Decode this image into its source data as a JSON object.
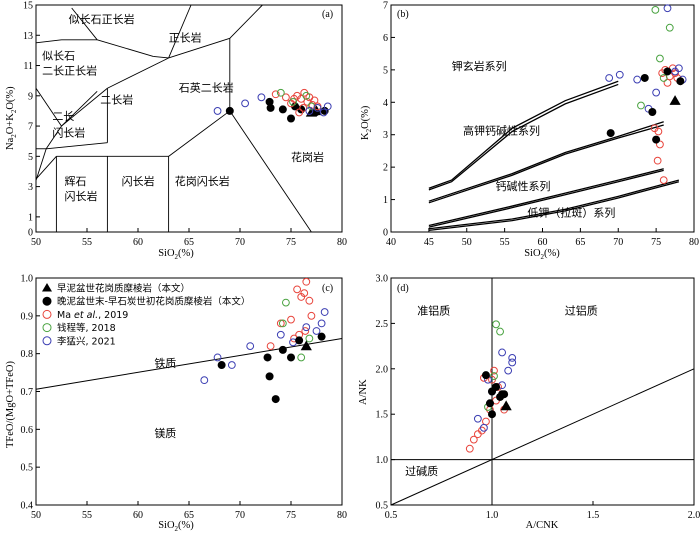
{
  "chart_data": [
    {
      "panel": "(a)",
      "type": "scatter",
      "xlabel": "SiO2(%)",
      "ylabel": "Na2O+K2O(%)",
      "xlim": [
        50,
        80
      ],
      "ylim": [
        0,
        15
      ],
      "xticks": [
        "50",
        "55",
        "60",
        "65",
        "70",
        "75",
        "80"
      ],
      "yticks": [
        "0",
        "1",
        "3",
        "5",
        "7",
        "9",
        "11",
        "13",
        "15"
      ],
      "fields": [
        "似长石正长岩",
        "似长石",
        "二长正长岩",
        "正长岩",
        "石英二长岩",
        "二长岩",
        "二长",
        "闪长岩",
        "辉石",
        "闪长岩",
        "闪长岩",
        "花岗闪长岩",
        "花岗岩"
      ],
      "series": [
        {
          "name": "早泥盆世花岗质糜棱岩（本文）",
          "marker": "triangle",
          "points": [
            [
              77.0,
              7.9
            ],
            [
              77.5,
              8.0
            ]
          ]
        },
        {
          "name": "晚泥盆世末-早石炭世初花岗质糜棱岩（本文）",
          "marker": "filled-circle",
          "points": [
            [
              69.0,
              8.0
            ],
            [
              72.9,
              8.6
            ],
            [
              73.0,
              8.2
            ],
            [
              74.2,
              8.1
            ],
            [
              75.0,
              7.5
            ],
            [
              75.4,
              8.3
            ],
            [
              76.0,
              8.1
            ],
            [
              77.4,
              7.9
            ],
            [
              78.3,
              8.0
            ]
          ]
        },
        {
          "name": "Ma et al., 2019",
          "marker": "red-circle",
          "points": [
            [
              73.5,
              9.1
            ],
            [
              74.5,
              8.9
            ],
            [
              75.0,
              8.5
            ],
            [
              75.3,
              8.8
            ],
            [
              75.6,
              9.0
            ],
            [
              76.0,
              8.8
            ],
            [
              76.3,
              9.2
            ],
            [
              76.6,
              8.6
            ],
            [
              76.8,
              8.9
            ],
            [
              77.1,
              8.4
            ],
            [
              77.3,
              8.7
            ],
            [
              77.6,
              8.3
            ],
            [
              76.2,
              8.2
            ],
            [
              75.8,
              7.9
            ]
          ]
        },
        {
          "name": "钱程等, 2018",
          "marker": "green-circle",
          "points": [
            [
              74.0,
              9.2
            ],
            [
              75.2,
              8.6
            ],
            [
              76.5,
              9.0
            ],
            [
              77.0,
              8.3
            ]
          ]
        },
        {
          "name": "李猛兴, 2021",
          "marker": "blue-circle",
          "points": [
            [
              67.8,
              8.0
            ],
            [
              70.5,
              8.5
            ],
            [
              72.1,
              8.9
            ],
            [
              76.8,
              8.0
            ],
            [
              77.6,
              8.2
            ],
            [
              78.6,
              8.3
            ],
            [
              78.2,
              7.9
            ]
          ]
        }
      ]
    },
    {
      "panel": "(b)",
      "type": "scatter",
      "xlabel": "SiO2(%)",
      "ylabel": "K2O(%)",
      "xlim": [
        40,
        80
      ],
      "ylim": [
        0,
        7
      ],
      "xticks": [
        "40",
        "45",
        "50",
        "55",
        "60",
        "65",
        "70",
        "75",
        "80"
      ],
      "yticks": [
        "0",
        "1",
        "2",
        "3",
        "4",
        "5",
        "6",
        "7"
      ],
      "fields": [
        "钾玄岩系列",
        "高钾钙碱性系列",
        "钙碱性系列",
        "低钾（拉斑）系列"
      ],
      "points": {
        "triangle": [
          [
            77.5,
            4.05
          ]
        ],
        "black": [
          [
            69.0,
            3.05
          ],
          [
            73.5,
            4.75
          ],
          [
            74.5,
            3.7
          ],
          [
            75.0,
            2.85
          ],
          [
            76.5,
            4.95
          ],
          [
            78.2,
            4.65
          ]
        ],
        "red": [
          [
            74.8,
            3.2
          ],
          [
            75.2,
            2.2
          ],
          [
            75.5,
            2.7
          ],
          [
            76.0,
            1.6
          ],
          [
            75.8,
            4.9
          ],
          [
            76.2,
            5.0
          ],
          [
            76.5,
            4.6
          ],
          [
            76.8,
            4.8
          ],
          [
            77.2,
            5.05
          ],
          [
            77.5,
            4.9
          ],
          [
            77.8,
            4.75
          ],
          [
            75.3,
            3.1
          ]
        ],
        "green": [
          [
            74.9,
            6.85
          ],
          [
            75.5,
            5.35
          ],
          [
            76.8,
            6.3
          ],
          [
            73.0,
            3.9
          ],
          [
            76.0,
            4.75
          ]
        ],
        "blue": [
          [
            68.8,
            4.75
          ],
          [
            70.2,
            4.85
          ],
          [
            72.5,
            4.7
          ],
          [
            74.0,
            3.8
          ],
          [
            75.0,
            4.3
          ],
          [
            76.5,
            6.9
          ],
          [
            77.5,
            4.95
          ],
          [
            78.0,
            5.05
          ],
          [
            78.5,
            4.7
          ]
        ]
      }
    },
    {
      "panel": "(c)",
      "type": "scatter",
      "xlabel": "SiO2(%)",
      "ylabel": "TFeO/(MgO+TFeO)",
      "xlim": [
        50,
        80
      ],
      "ylim": [
        0.4,
        1.0
      ],
      "xticks": [
        "50",
        "55",
        "60",
        "65",
        "70",
        "75",
        "80"
      ],
      "yticks": [
        "0.4",
        "0.5",
        "0.6",
        "0.7",
        "0.8",
        "0.9",
        "1.0"
      ],
      "fields": [
        "铁质",
        "镁质"
      ],
      "points": {
        "triangle": [
          [
            76.5,
            0.82
          ]
        ],
        "black": [
          [
            68.2,
            0.77
          ],
          [
            72.7,
            0.79
          ],
          [
            72.9,
            0.74
          ],
          [
            73.5,
            0.68
          ],
          [
            74.2,
            0.81
          ],
          [
            75.0,
            0.79
          ],
          [
            75.8,
            0.835
          ],
          [
            78.0,
            0.845
          ]
        ],
        "red": [
          [
            73.0,
            0.82
          ],
          [
            74.0,
            0.88
          ],
          [
            75.0,
            0.89
          ],
          [
            75.3,
            0.84
          ],
          [
            75.6,
            0.97
          ],
          [
            76.0,
            0.95
          ],
          [
            76.3,
            0.96
          ],
          [
            76.5,
            0.99
          ],
          [
            76.8,
            0.94
          ],
          [
            77.0,
            0.9
          ],
          [
            76.4,
            0.86
          ],
          [
            75.8,
            0.85
          ]
        ],
        "green": [
          [
            74.2,
            0.88
          ],
          [
            74.5,
            0.935
          ],
          [
            76.0,
            0.79
          ],
          [
            76.8,
            0.84
          ]
        ],
        "blue": [
          [
            66.5,
            0.73
          ],
          [
            67.8,
            0.79
          ],
          [
            69.2,
            0.77
          ],
          [
            71.0,
            0.82
          ],
          [
            74.0,
            0.85
          ],
          [
            75.2,
            0.83
          ],
          [
            76.5,
            0.87
          ],
          [
            77.5,
            0.86
          ],
          [
            78.0,
            0.88
          ],
          [
            78.3,
            0.91
          ]
        ]
      }
    },
    {
      "panel": "(d)",
      "type": "scatter",
      "xlabel": "A/CNK",
      "ylabel": "A/NK",
      "xlim": [
        0.5,
        2.0
      ],
      "ylim": [
        0.5,
        3.0
      ],
      "xticks": [
        "0.5",
        "1.0",
        "1.5",
        "2.0"
      ],
      "yticks": [
        "0.5",
        "1.0",
        "1.5",
        "2.0",
        "2.5",
        "3.0"
      ],
      "fields": [
        "准铝质",
        "过铝质",
        "过碱质"
      ],
      "points": {
        "triangle": [
          [
            1.07,
            1.59
          ]
        ],
        "black": [
          [
            0.97,
            1.93
          ],
          [
            1.0,
            1.5
          ],
          [
            1.0,
            1.75
          ],
          [
            1.02,
            1.8
          ],
          [
            1.04,
            1.69
          ],
          [
            1.05,
            1.72
          ],
          [
            1.06,
            1.72
          ],
          [
            0.99,
            1.62
          ]
        ],
        "red": [
          [
            0.89,
            1.12
          ],
          [
            0.91,
            1.22
          ],
          [
            0.93,
            1.28
          ],
          [
            0.95,
            1.32
          ],
          [
            0.97,
            1.42
          ],
          [
            0.99,
            1.55
          ],
          [
            1.01,
            1.98
          ],
          [
            1.03,
            1.8
          ],
          [
            1.06,
            1.55
          ],
          [
            0.96,
            1.9
          ],
          [
            1.0,
            1.88
          ],
          [
            1.02,
            1.65
          ]
        ],
        "green": [
          [
            1.02,
            2.49
          ],
          [
            1.04,
            2.41
          ],
          [
            0.98,
            1.58
          ],
          [
            1.01,
            1.92
          ]
        ],
        "blue": [
          [
            0.93,
            1.45
          ],
          [
            0.96,
            1.35
          ],
          [
            0.98,
            1.88
          ],
          [
            1.0,
            1.75
          ],
          [
            1.05,
            2.18
          ],
          [
            1.08,
            1.98
          ],
          [
            1.1,
            2.07
          ],
          [
            1.1,
            2.12
          ],
          [
            1.05,
            1.82
          ]
        ]
      }
    }
  ],
  "legend": [
    {
      "label": "早泥盆世花岗质糜棱岩（本文）",
      "marker": "triangle"
    },
    {
      "label": "晚泥盆世末-早石炭世初花岗质糜棱岩（本文）",
      "marker": "filled-circle"
    },
    {
      "label": "Ma et al., 2019",
      "marker": "red-circle"
    },
    {
      "label": "钱程等, 2018",
      "marker": "green-circle"
    },
    {
      "label": "李猛兴, 2021",
      "marker": "blue-circle"
    }
  ],
  "colors": {
    "red": "#e8453c",
    "green": "#4aa341",
    "blue": "#3c3fb3",
    "black": "#000000"
  }
}
